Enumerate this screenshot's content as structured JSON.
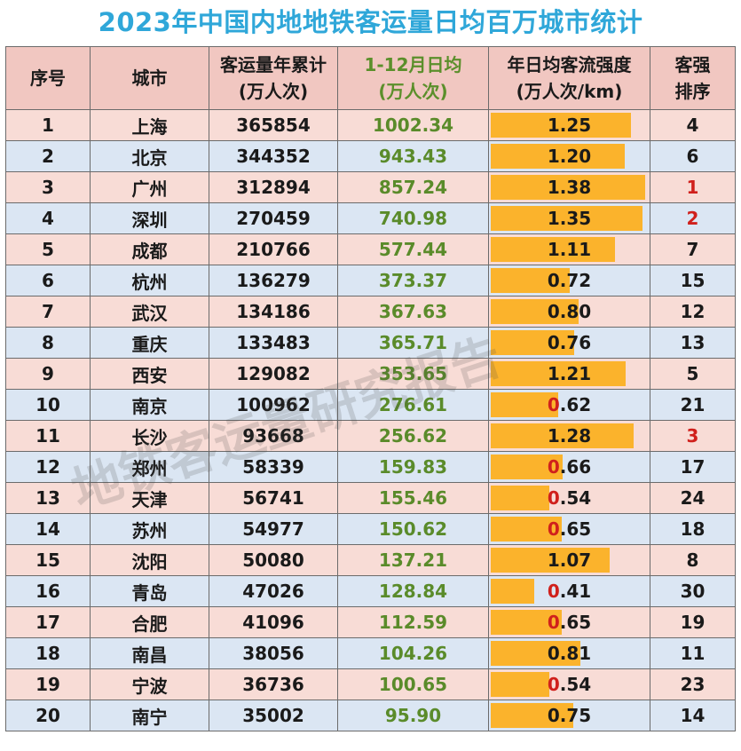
{
  "title": "2023年中国内地地铁客运量日均百万城市统计",
  "headers": {
    "rank": "序号",
    "city": "城市",
    "annual_l1": "客运量年累计",
    "annual_l2": "(万人次)",
    "daily_l1": "1-12月日均",
    "daily_l2": "(万人次)",
    "intensity_l1": "年日均客流强度",
    "intensity_l2": "(万人次/km)",
    "irank_l1": "客强",
    "irank_l2": "排序"
  },
  "colors": {
    "row_pink": "#f8dcd6",
    "row_blue": "#dbe6f3",
    "bar": "#fbb32c",
    "title": "#2fa7d9",
    "highlight_red": "#d0201c",
    "green_text": "#5a8b2a"
  },
  "rows": [
    {
      "rank": "1",
      "city": "上海",
      "annual": "365854",
      "daily": "1002.34",
      "intensity": "1.25",
      "irank": "4",
      "ired": false,
      "vred": false
    },
    {
      "rank": "2",
      "city": "北京",
      "annual": "344352",
      "daily": "943.43",
      "intensity": "1.20",
      "irank": "6",
      "ired": false,
      "vred": false
    },
    {
      "rank": "3",
      "city": "广州",
      "annual": "312894",
      "daily": "857.24",
      "intensity": "1.38",
      "irank": "1",
      "ired": true,
      "vred": false
    },
    {
      "rank": "4",
      "city": "深圳",
      "annual": "270459",
      "daily": "740.98",
      "intensity": "1.35",
      "irank": "2",
      "ired": true,
      "vred": false
    },
    {
      "rank": "5",
      "city": "成都",
      "annual": "210766",
      "daily": "577.44",
      "intensity": "1.11",
      "irank": "7",
      "ired": false,
      "vred": false
    },
    {
      "rank": "6",
      "city": "杭州",
      "annual": "136279",
      "daily": "373.37",
      "intensity": "0.72",
      "irank": "15",
      "ired": false,
      "vred": false
    },
    {
      "rank": "7",
      "city": "武汉",
      "annual": "134186",
      "daily": "367.63",
      "intensity": "0.80",
      "irank": "12",
      "ired": false,
      "vred": false
    },
    {
      "rank": "8",
      "city": "重庆",
      "annual": "133483",
      "daily": "365.71",
      "intensity": "0.76",
      "irank": "13",
      "ired": false,
      "vred": false
    },
    {
      "rank": "9",
      "city": "西安",
      "annual": "129082",
      "daily": "353.65",
      "intensity": "1.21",
      "irank": "5",
      "ired": false,
      "vred": false
    },
    {
      "rank": "10",
      "city": "南京",
      "annual": "100962",
      "daily": "276.61",
      "intensity": "0.62",
      "irank": "21",
      "ired": false,
      "vred": true
    },
    {
      "rank": "11",
      "city": "长沙",
      "annual": "93668",
      "daily": "256.62",
      "intensity": "1.28",
      "irank": "3",
      "ired": true,
      "vred": false
    },
    {
      "rank": "12",
      "city": "郑州",
      "annual": "58339",
      "daily": "159.83",
      "intensity": "0.66",
      "irank": "17",
      "ired": false,
      "vred": true
    },
    {
      "rank": "13",
      "city": "天津",
      "annual": "56741",
      "daily": "155.46",
      "intensity": "0.54",
      "irank": "24",
      "ired": false,
      "vred": true
    },
    {
      "rank": "14",
      "city": "苏州",
      "annual": "54977",
      "daily": "150.62",
      "intensity": "0.65",
      "irank": "18",
      "ired": false,
      "vred": true
    },
    {
      "rank": "15",
      "city": "沈阳",
      "annual": "50080",
      "daily": "137.21",
      "intensity": "1.07",
      "irank": "8",
      "ired": false,
      "vred": false
    },
    {
      "rank": "16",
      "city": "青岛",
      "annual": "47026",
      "daily": "128.84",
      "intensity": "0.41",
      "irank": "30",
      "ired": false,
      "vred": true
    },
    {
      "rank": "17",
      "city": "合肥",
      "annual": "41096",
      "daily": "112.59",
      "intensity": "0.65",
      "irank": "19",
      "ired": false,
      "vred": true
    },
    {
      "rank": "18",
      "city": "南昌",
      "annual": "38056",
      "daily": "104.26",
      "intensity": "0.81",
      "irank": "11",
      "ired": false,
      "vred": false
    },
    {
      "rank": "19",
      "city": "宁波",
      "annual": "36736",
      "daily": "100.65",
      "intensity": "0.54",
      "irank": "23",
      "ired": false,
      "vred": true
    },
    {
      "rank": "20",
      "city": "南宁",
      "annual": "35002",
      "daily": "95.90",
      "intensity": "0.75",
      "irank": "14",
      "ired": false,
      "vred": false
    }
  ],
  "intensity_max": 1.4,
  "watermark": "地铁客运量研究报告"
}
